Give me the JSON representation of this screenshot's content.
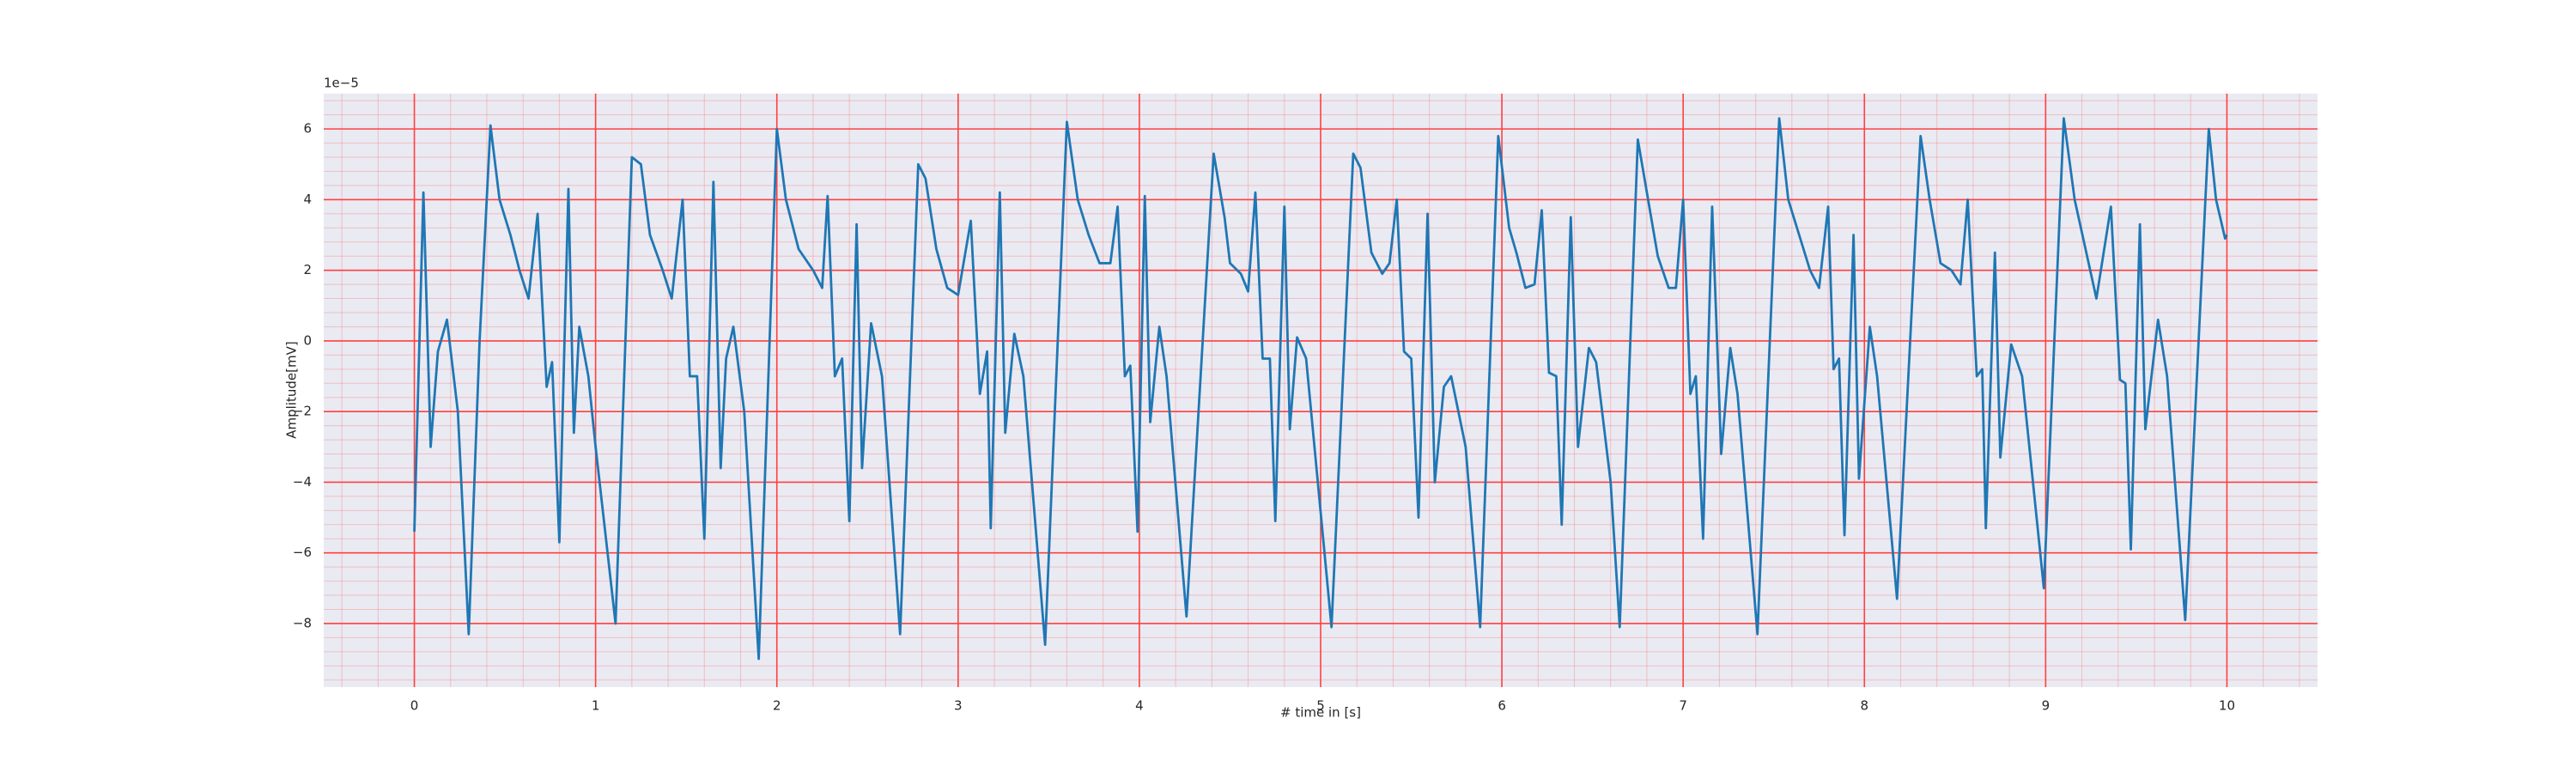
{
  "chart_data": {
    "type": "line",
    "xlabel": "# time in [s]",
    "ylabel": "Amplitude[mV]",
    "offset_text": "1e−5",
    "x": [
      0.0,
      0.05,
      0.09,
      0.13,
      0.18,
      0.24,
      0.3,
      0.36,
      0.42,
      0.47,
      0.53,
      0.58,
      0.63,
      0.68,
      0.73,
      0.76,
      0.8,
      0.85,
      0.88,
      0.91,
      0.96,
      1.0,
      1.11,
      1.2,
      1.25,
      1.3,
      1.37,
      1.42,
      1.48,
      1.52,
      1.56,
      1.6,
      1.65,
      1.69,
      1.72,
      1.76,
      1.82,
      1.9,
      2.0,
      2.05,
      2.12,
      2.2,
      2.25,
      2.28,
      2.32,
      2.36,
      2.4,
      2.44,
      2.47,
      2.52,
      2.58,
      2.68,
      2.78,
      2.82,
      2.88,
      2.94,
      3.0,
      3.07,
      3.12,
      3.16,
      3.18,
      3.23,
      3.26,
      3.31,
      3.36,
      3.48,
      3.6,
      3.66,
      3.72,
      3.78,
      3.84,
      3.88,
      3.92,
      3.95,
      3.99,
      4.03,
      4.06,
      4.11,
      4.15,
      4.26,
      4.41,
      4.47,
      4.5,
      4.56,
      4.6,
      4.64,
      4.68,
      4.72,
      4.75,
      4.8,
      4.83,
      4.87,
      4.92,
      5.06,
      5.18,
      5.22,
      5.28,
      5.34,
      5.38,
      5.42,
      5.46,
      5.5,
      5.54,
      5.59,
      5.63,
      5.68,
      5.72,
      5.8,
      5.88,
      5.98,
      6.04,
      6.08,
      6.13,
      6.18,
      6.22,
      6.26,
      6.3,
      6.33,
      6.38,
      6.42,
      6.48,
      6.52,
      6.6,
      6.65,
      6.75,
      6.8,
      6.86,
      6.92,
      6.96,
      7.0,
      7.04,
      7.07,
      7.11,
      7.16,
      7.21,
      7.26,
      7.3,
      7.41,
      7.53,
      7.58,
      7.64,
      7.7,
      7.75,
      7.8,
      7.83,
      7.86,
      7.89,
      7.94,
      7.97,
      8.03,
      8.07,
      8.18,
      8.31,
      8.36,
      8.42,
      8.48,
      8.53,
      8.57,
      8.62,
      8.65,
      8.67,
      8.72,
      8.75,
      8.81,
      8.87,
      8.99,
      9.1,
      9.16,
      9.22,
      9.28,
      9.36,
      9.41,
      9.44,
      9.47,
      9.52,
      9.55,
      9.62,
      9.67,
      9.77,
      9.9,
      9.94,
      9.99,
      10.0
    ],
    "series": [
      {
        "color": "#1f77b4",
        "values": [
          -5.4,
          4.2,
          -3.0,
          -0.3,
          0.6,
          -2.0,
          -8.3,
          0.0,
          6.1,
          4.0,
          3.0,
          2.0,
          1.2,
          3.6,
          -1.3,
          -0.6,
          -5.7,
          4.3,
          -2.6,
          0.4,
          -1.0,
          -3.0,
          -8.0,
          5.2,
          5.0,
          3.0,
          2.0,
          1.2,
          4.0,
          -1.0,
          -1.0,
          -5.6,
          4.5,
          -3.6,
          -0.5,
          0.4,
          -2.0,
          -9.0,
          6.0,
          4.0,
          2.6,
          2.0,
          1.5,
          4.1,
          -1.0,
          -0.5,
          -5.1,
          3.3,
          -3.6,
          0.5,
          -1.0,
          -8.3,
          5.0,
          4.6,
          2.6,
          1.5,
          1.3,
          3.4,
          -1.5,
          -0.3,
          -5.3,
          4.2,
          -2.6,
          0.2,
          -1.0,
          -8.6,
          6.2,
          4.0,
          3.0,
          2.2,
          2.2,
          3.8,
          -1.0,
          -0.7,
          -5.4,
          4.1,
          -2.3,
          0.4,
          -1.0,
          -7.8,
          5.3,
          3.5,
          2.2,
          1.9,
          1.4,
          4.2,
          -0.5,
          -0.5,
          -5.1,
          3.8,
          -2.5,
          0.1,
          -0.5,
          -8.1,
          5.3,
          4.9,
          2.5,
          1.9,
          2.2,
          4.0,
          -0.3,
          -0.5,
          -5.0,
          3.6,
          -4.0,
          -1.3,
          -1.0,
          -3.0,
          -8.1,
          5.8,
          3.2,
          2.5,
          1.5,
          1.6,
          3.7,
          -0.9,
          -1.0,
          -5.2,
          3.5,
          -3.0,
          -0.2,
          -0.6,
          -4.0,
          -8.1,
          5.7,
          4.2,
          2.4,
          1.5,
          1.5,
          4.0,
          -1.5,
          -1.0,
          -5.6,
          3.8,
          -3.2,
          -0.2,
          -1.5,
          -8.3,
          6.3,
          4.0,
          3.0,
          2.0,
          1.5,
          3.8,
          -0.8,
          -0.5,
          -5.5,
          3.0,
          -3.9,
          0.4,
          -1.0,
          -7.3,
          5.8,
          4.0,
          2.2,
          2.0,
          1.6,
          4.0,
          -1.0,
          -0.8,
          -5.3,
          2.5,
          -3.3,
          -0.1,
          -1.0,
          -7.0,
          6.3,
          4.0,
          2.6,
          1.2,
          3.8,
          -1.1,
          -1.2,
          -5.9,
          3.3,
          -2.5,
          0.6,
          -1.0,
          -7.9,
          6.0,
          4.0,
          2.9,
          3.0
        ]
      }
    ],
    "xlim": [
      -0.5,
      10.5
    ],
    "ylim": [
      -9.8,
      7.0
    ],
    "xticks": [
      0,
      1,
      2,
      3,
      4,
      5,
      6,
      7,
      8,
      9,
      10
    ],
    "yticks": [
      {
        "value": -8,
        "label": "−8"
      },
      {
        "value": -6,
        "label": "−6"
      },
      {
        "value": -4,
        "label": "−4"
      },
      {
        "value": -2,
        "label": "−2"
      },
      0,
      2,
      4,
      6
    ],
    "grid": true,
    "grid_color": "#ff4040",
    "minor_grid": true,
    "background": "#eaeaf2"
  }
}
